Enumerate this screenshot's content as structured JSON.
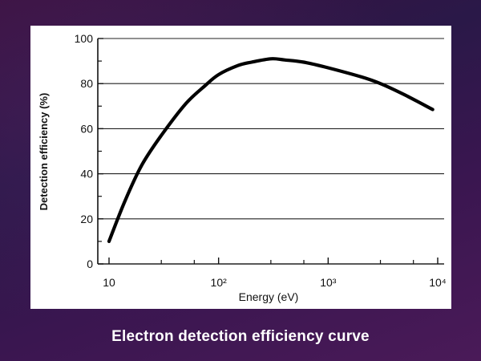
{
  "caption": "Electron detection efficiency curve",
  "chart_data": {
    "type": "line",
    "title": "",
    "xlabel": "Energy (eV)",
    "ylabel": "Detection efficiency (%)",
    "xscale": "log",
    "xlim": [
      10,
      10000
    ],
    "ylim": [
      0,
      100
    ],
    "grid": "horizontal",
    "x_tick_labels": [
      "10",
      "10²",
      "10³",
      "10⁴"
    ],
    "y_tick_labels": [
      "0",
      "20",
      "40",
      "60",
      "80",
      "100"
    ],
    "series": [
      {
        "x": [
          10,
          14,
          20,
          30,
          50,
          75,
          100,
          150,
          200,
          300,
          400,
          600,
          1000,
          2000,
          3000,
          5000,
          9000
        ],
        "y": [
          10,
          28,
          44,
          57,
          71,
          79,
          84,
          88,
          89.5,
          91,
          90.5,
          89.5,
          87,
          83,
          80,
          75,
          68.5
        ]
      }
    ]
  }
}
